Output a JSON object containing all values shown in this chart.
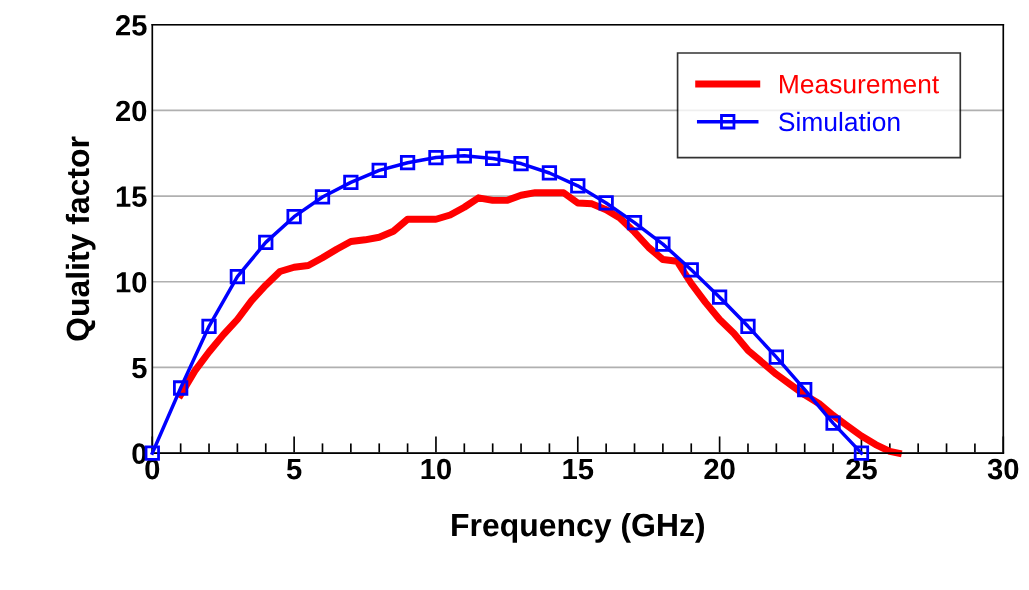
{
  "chart_data": {
    "type": "line",
    "xlabel": "Frequency (GHz)",
    "ylabel": "Quality factor",
    "xlim": [
      0,
      30
    ],
    "xticks": [
      0,
      5,
      10,
      15,
      20,
      25,
      30
    ],
    "ylim": [
      0,
      25
    ],
    "yticks": [
      0,
      5,
      10,
      15,
      20,
      25
    ],
    "grid": "y",
    "legend": "top right",
    "series": [
      {
        "name": "Measurement",
        "color": "#ff0000",
        "marker": "none",
        "x": [
          1,
          1.5,
          2,
          2.5,
          3,
          3.5,
          4,
          4.5,
          5,
          5.5,
          6,
          6.5,
          7,
          7.5,
          8,
          8.5,
          9,
          9.5,
          10,
          10.5,
          11,
          11.5,
          12,
          12.5,
          13,
          13.5,
          14,
          14.5,
          15,
          15.5,
          16,
          16.5,
          17,
          17.5,
          18,
          18.5,
          19,
          19.5,
          20,
          20.5,
          21,
          21.5,
          22,
          22.5,
          23,
          23.5,
          24,
          24.5,
          25,
          25.5,
          26,
          26.3
        ],
        "values": [
          3.4,
          4.8,
          5.9,
          6.9,
          7.8,
          8.9,
          9.8,
          10.6,
          10.85,
          10.95,
          11.4,
          11.9,
          12.35,
          12.45,
          12.6,
          12.95,
          13.65,
          13.65,
          13.65,
          13.9,
          14.35,
          14.9,
          14.75,
          14.75,
          15.05,
          15.2,
          15.2,
          15.2,
          14.6,
          14.55,
          14.2,
          13.7,
          12.9,
          12.0,
          11.3,
          11.2,
          9.9,
          8.8,
          7.8,
          7.0,
          6.0,
          5.3,
          4.6,
          4.0,
          3.4,
          2.9,
          2.2,
          1.6,
          1.0,
          0.5,
          0.1,
          0
        ]
      },
      {
        "name": "Simulation",
        "color": "#0000ff",
        "marker": "square",
        "x": [
          0,
          1,
          2,
          3,
          4,
          5,
          6,
          7,
          8,
          9,
          10,
          11,
          12,
          13,
          14,
          15,
          16,
          17,
          18,
          19,
          20,
          21,
          22,
          23,
          24,
          25
        ],
        "values": [
          0,
          3.8,
          7.4,
          10.3,
          12.3,
          13.8,
          14.95,
          15.8,
          16.5,
          16.95,
          17.25,
          17.35,
          17.2,
          16.9,
          16.35,
          15.6,
          14.6,
          13.45,
          12.2,
          10.7,
          9.1,
          7.4,
          5.6,
          3.7,
          1.75,
          0
        ]
      }
    ]
  }
}
